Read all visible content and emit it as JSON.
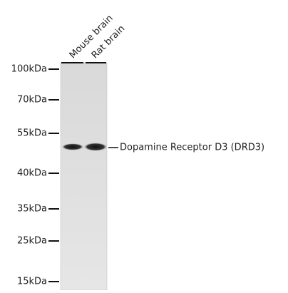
{
  "lanes": [
    "Mouse brain",
    "Rat brain"
  ],
  "markers": [
    "100kDa",
    "70kDa",
    "55kDa",
    "40kDa",
    "35kDa",
    "25kDa",
    "15kDa"
  ],
  "band_label": "Dopamine Receptor D3 (DRD3)"
}
